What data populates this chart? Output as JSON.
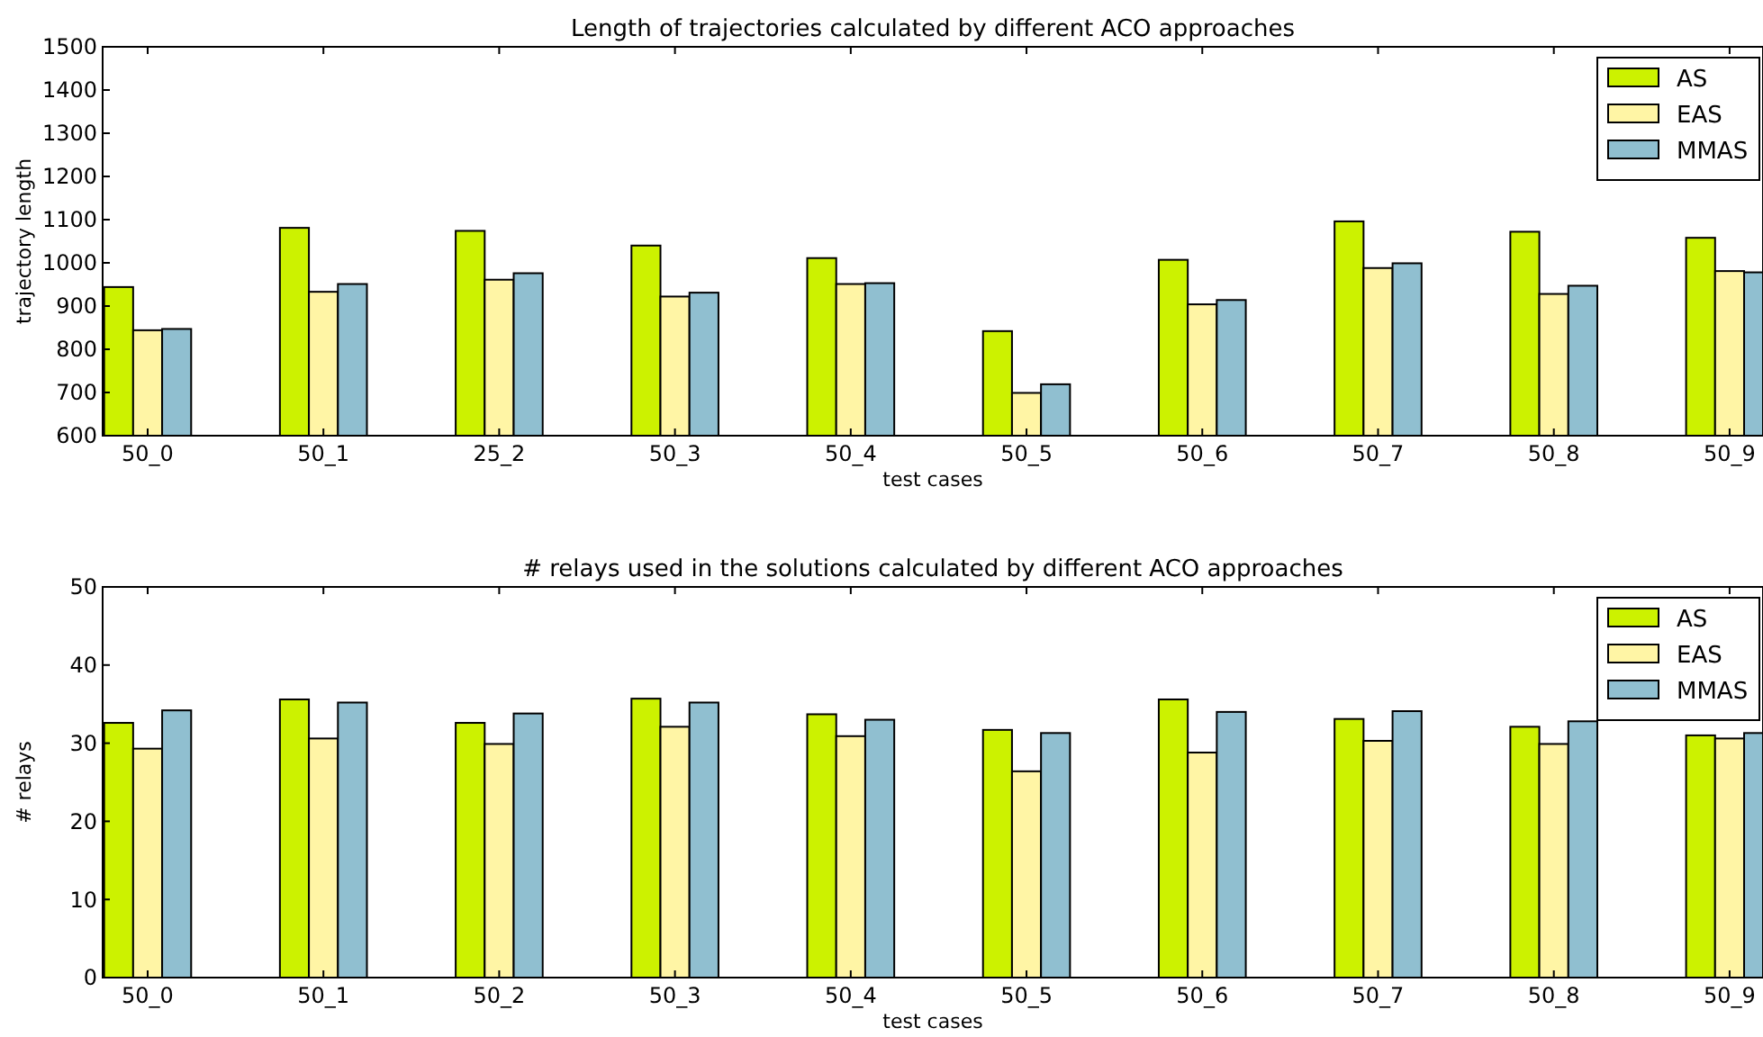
{
  "chart_data": [
    {
      "type": "bar",
      "title": "Length of trajectories calculated by different ACO approaches",
      "xlabel": "test cases",
      "ylabel": "trajectory length",
      "categories": [
        "50_0",
        "50_1",
        "25_2",
        "50_3",
        "50_4",
        "50_5",
        "50_6",
        "50_7",
        "50_8",
        "50_9"
      ],
      "series": [
        {
          "name": "AS",
          "color": "#ccf200",
          "values": [
            944,
            1081,
            1074,
            1040,
            1011,
            842,
            1007,
            1096,
            1072,
            1058
          ]
        },
        {
          "name": "EAS",
          "color": "#fff5a5",
          "values": [
            844,
            933,
            961,
            922,
            951,
            699,
            904,
            988,
            928,
            981
          ]
        },
        {
          "name": "MMAS",
          "color": "#90bfd0",
          "values": [
            847,
            951,
            976,
            931,
            953,
            719,
            914,
            999,
            947,
            978
          ]
        }
      ],
      "ylim": [
        600,
        1500
      ],
      "yticks": [
        600,
        700,
        800,
        900,
        1000,
        1100,
        1200,
        1300,
        1400,
        1500
      ],
      "grid": false,
      "legend": "top right"
    },
    {
      "type": "bar",
      "title": "# relays used in the solutions calculated by different ACO approaches",
      "xlabel": "test cases",
      "ylabel": "# relays",
      "categories": [
        "50_0",
        "50_1",
        "50_2",
        "50_3",
        "50_4",
        "50_5",
        "50_6",
        "50_7",
        "50_8",
        "50_9"
      ],
      "series": [
        {
          "name": "AS",
          "color": "#ccf200",
          "values": [
            32.6,
            35.6,
            32.6,
            35.7,
            33.7,
            31.7,
            35.6,
            33.1,
            32.1,
            31.0
          ]
        },
        {
          "name": "EAS",
          "color": "#fff5a5",
          "values": [
            29.3,
            30.6,
            29.9,
            32.1,
            30.9,
            26.4,
            28.8,
            30.3,
            29.9,
            30.6
          ]
        },
        {
          "name": "MMAS",
          "color": "#90bfd0",
          "values": [
            34.2,
            35.2,
            33.8,
            35.2,
            33.0,
            31.3,
            34.0,
            34.1,
            32.8,
            31.3
          ]
        }
      ],
      "ylim": [
        0,
        50
      ],
      "yticks": [
        0,
        10,
        20,
        30,
        40,
        50
      ],
      "grid": false,
      "legend": "top right"
    }
  ]
}
